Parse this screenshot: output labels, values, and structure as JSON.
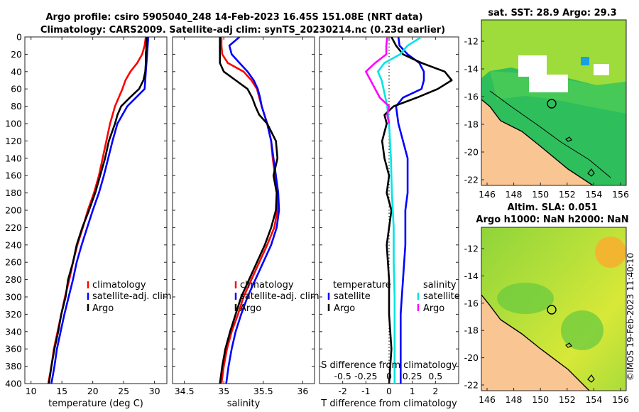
{
  "header": {
    "line1": "Argo profile: csiro 5905040_248 14-Feb-2023 16.45S 151.08E (NRT data)",
    "line2": "Climatology: CARS2009. Satellite-adj clim: synTS_20230214.nc (0.23d earlier)"
  },
  "colors": {
    "climatology": "#ff0000",
    "satellite": "#0000ff",
    "argo": "#000000",
    "sat_salinity": "#00e5e5",
    "argo_salinity": "#ff00ff"
  },
  "chart_data": [
    {
      "type": "line",
      "id": "temperature",
      "xlabel": "temperature (deg C)",
      "ylim": [
        0,
        400
      ],
      "y_ticks": [
        "0",
        "20",
        "40",
        "60",
        "80",
        "100",
        "120",
        "140",
        "160",
        "180",
        "200",
        "220",
        "240",
        "260",
        "280",
        "300",
        "320",
        "340",
        "360",
        "380",
        "400"
      ],
      "xlim": [
        9,
        32
      ],
      "x_ticks": [
        "10",
        "15",
        "20",
        "25",
        "30"
      ],
      "legend": [
        "climatology",
        "satellite-adj. clim",
        "Argo"
      ],
      "series": [
        {
          "name": "climatology",
          "color": "#ff0000",
          "depth": [
            0,
            10,
            20,
            30,
            40,
            50,
            60,
            70,
            80,
            100,
            120,
            140,
            160,
            180,
            200,
            220,
            240,
            260,
            280,
            300,
            320,
            340,
            360,
            380,
            400
          ],
          "values": [
            28.6,
            28.4,
            28.0,
            27.2,
            26.1,
            25.3,
            24.8,
            24.2,
            23.6,
            22.8,
            22.2,
            21.6,
            21.0,
            20.2,
            19.2,
            18.4,
            17.5,
            16.8,
            16.2,
            15.5,
            14.9,
            14.3,
            13.7,
            13.3,
            12.8
          ]
        },
        {
          "name": "satellite-adj. clim",
          "color": "#0000ff",
          "depth": [
            0,
            10,
            20,
            30,
            40,
            50,
            60,
            70,
            80,
            100,
            120,
            140,
            160,
            180,
            200,
            220,
            240,
            260,
            280,
            300,
            320,
            340,
            360,
            380,
            400
          ],
          "values": [
            29.0,
            28.9,
            28.8,
            28.7,
            28.6,
            28.5,
            28.4,
            27.0,
            25.6,
            24.0,
            23.2,
            22.5,
            21.8,
            21.0,
            20.0,
            19.1,
            18.2,
            17.4,
            16.8,
            16.1,
            15.4,
            14.8,
            14.2,
            13.8,
            13.3
          ]
        },
        {
          "name": "Argo",
          "color": "#000000",
          "depth": [
            0,
            10,
            20,
            30,
            40,
            50,
            60,
            70,
            80,
            90,
            100,
            120,
            140,
            160,
            180,
            200,
            220,
            240,
            260,
            280,
            300,
            320,
            340,
            360,
            380,
            400
          ],
          "values": [
            28.7,
            28.7,
            28.6,
            28.6,
            28.5,
            28.2,
            27.5,
            26.0,
            24.6,
            24.0,
            23.6,
            22.6,
            22.0,
            21.2,
            20.4,
            19.4,
            18.3,
            17.4,
            16.8,
            16.0,
            15.6,
            14.9,
            14.4,
            13.8,
            13.3,
            12.9
          ]
        }
      ]
    },
    {
      "type": "line",
      "id": "salinity",
      "xlabel": "salinity",
      "ylim": [
        0,
        400
      ],
      "xlim": [
        34.35,
        36.15
      ],
      "x_ticks": [
        "34.5",
        "35",
        "35.5",
        "36"
      ],
      "legend": [
        "climatology",
        "satellite-adj. clim",
        "Argo"
      ],
      "series": [
        {
          "name": "climatology",
          "color": "#ff0000",
          "depth": [
            0,
            10,
            20,
            30,
            40,
            50,
            60,
            70,
            80,
            100,
            120,
            140,
            160,
            180,
            200,
            220,
            240,
            260,
            280,
            300,
            320,
            340,
            360,
            380,
            400
          ],
          "values": [
            34.97,
            34.97,
            34.98,
            35.05,
            35.25,
            35.35,
            35.42,
            35.45,
            35.48,
            35.55,
            35.6,
            35.62,
            35.65,
            35.68,
            35.68,
            35.64,
            35.55,
            35.45,
            35.35,
            35.25,
            35.18,
            35.1,
            35.04,
            35.0,
            34.97
          ]
        },
        {
          "name": "satellite-adj. clim",
          "color": "#0000ff",
          "depth": [
            0,
            10,
            20,
            30,
            40,
            50,
            60,
            70,
            80,
            100,
            120,
            140,
            160,
            180,
            200,
            220,
            240,
            260,
            280,
            300,
            320,
            340,
            360,
            380,
            400
          ],
          "values": [
            35.2,
            35.07,
            35.1,
            35.2,
            35.3,
            35.38,
            35.43,
            35.46,
            35.48,
            35.55,
            35.6,
            35.63,
            35.66,
            35.69,
            35.7,
            35.67,
            35.6,
            35.5,
            35.4,
            35.3,
            35.22,
            35.15,
            35.1,
            35.06,
            35.03
          ]
        },
        {
          "name": "Argo",
          "color": "#000000",
          "depth": [
            0,
            10,
            20,
            30,
            40,
            50,
            60,
            70,
            80,
            90,
            100,
            120,
            140,
            160,
            180,
            200,
            220,
            240,
            260,
            280,
            300,
            320,
            340,
            360,
            380,
            400
          ],
          "values": [
            34.95,
            34.95,
            34.95,
            34.95,
            35.0,
            35.15,
            35.3,
            35.36,
            35.4,
            35.45,
            35.55,
            35.66,
            35.68,
            35.63,
            35.67,
            35.66,
            35.6,
            35.52,
            35.42,
            35.32,
            35.22,
            35.15,
            35.08,
            35.02,
            34.98,
            34.95
          ]
        }
      ]
    },
    {
      "type": "line",
      "id": "difference",
      "xlabel": "T difference from climatology",
      "xlabel_top": "S difference from climatology",
      "ylim": [
        0,
        400
      ],
      "xlim": [
        -3,
        3
      ],
      "x_ticks": [
        "-2",
        "-1",
        "0",
        "1",
        "2"
      ],
      "top_ticks": [
        "-0.5",
        "-0.25",
        "0",
        "0.25",
        "0.5"
      ],
      "legend_temperature_title": "temperature",
      "legend_salinity_title": "salinity",
      "legend_temperature": [
        "satellite",
        "Argo"
      ],
      "legend_salinity": [
        "satellite",
        "Argo"
      ],
      "series": [
        {
          "name": "temperature satellite",
          "color": "#0000ff",
          "depth": [
            0,
            10,
            20,
            30,
            40,
            50,
            60,
            70,
            80,
            100,
            120,
            140,
            160,
            180,
            200,
            240,
            280,
            320,
            360,
            400
          ],
          "values": [
            0.4,
            0.45,
            0.8,
            1.3,
            1.5,
            1.5,
            1.4,
            0.6,
            0.3,
            0.4,
            0.6,
            0.8,
            0.8,
            0.8,
            0.7,
            0.7,
            0.6,
            0.5,
            0.5,
            0.5
          ]
        },
        {
          "name": "temperature Argo",
          "color": "#000000",
          "depth": [
            0,
            10,
            20,
            30,
            40,
            50,
            60,
            70,
            80,
            90,
            100,
            120,
            140,
            160,
            180,
            200,
            240,
            280,
            320,
            360,
            400
          ],
          "values": [
            0.1,
            0.3,
            0.6,
            1.4,
            2.4,
            2.7,
            2.1,
            1.2,
            0.2,
            -0.2,
            -0.1,
            -0.3,
            -0.2,
            0.0,
            -0.1,
            0.1,
            -0.1,
            0.0,
            0.0,
            0.1,
            0.0
          ]
        },
        {
          "name": "salinity satellite",
          "color": "#00e5e5",
          "depth": [
            0,
            10,
            20,
            30,
            40,
            50,
            60,
            70,
            80,
            100,
            140,
            180,
            220,
            260,
            300,
            340,
            400
          ],
          "values": [
            0.35,
            0.2,
            0.12,
            -0.05,
            -0.12,
            -0.08,
            -0.06,
            -0.04,
            -0.02,
            0.0,
            0.02,
            0.03,
            0.05,
            0.05,
            0.06,
            0.06,
            0.06
          ]
        },
        {
          "name": "salinity Argo",
          "color": "#ff00ff",
          "depth": [
            0,
            10,
            20,
            30,
            40,
            50,
            60,
            70,
            80,
            90,
            100
          ],
          "values": [
            -0.02,
            -0.03,
            -0.03,
            -0.15,
            -0.25,
            -0.2,
            -0.15,
            -0.1,
            0.0,
            -0.02,
            0.0
          ]
        }
      ]
    },
    {
      "type": "heatmap",
      "id": "sst-map",
      "title": "sat. SST: 28.9 Argo: 29.3",
      "x_ticks": [
        "146",
        "148",
        "150",
        "152",
        "154",
        "156"
      ],
      "y_ticks": [
        "-12",
        "-14",
        "-16",
        "-18",
        "-20",
        "-22"
      ]
    },
    {
      "type": "heatmap",
      "id": "sla-map",
      "title_line1": "Altim. SLA: 0.051",
      "title_line2": "Argo h1000: NaN h2000: NaN",
      "x_ticks": [
        "146",
        "148",
        "150",
        "152",
        "154",
        "156"
      ],
      "y_ticks": [
        "-12",
        "-14",
        "-16",
        "-18",
        "-20",
        "-22"
      ]
    }
  ],
  "watermark": "©IMOS 19-Feb-2023 11:40:10"
}
